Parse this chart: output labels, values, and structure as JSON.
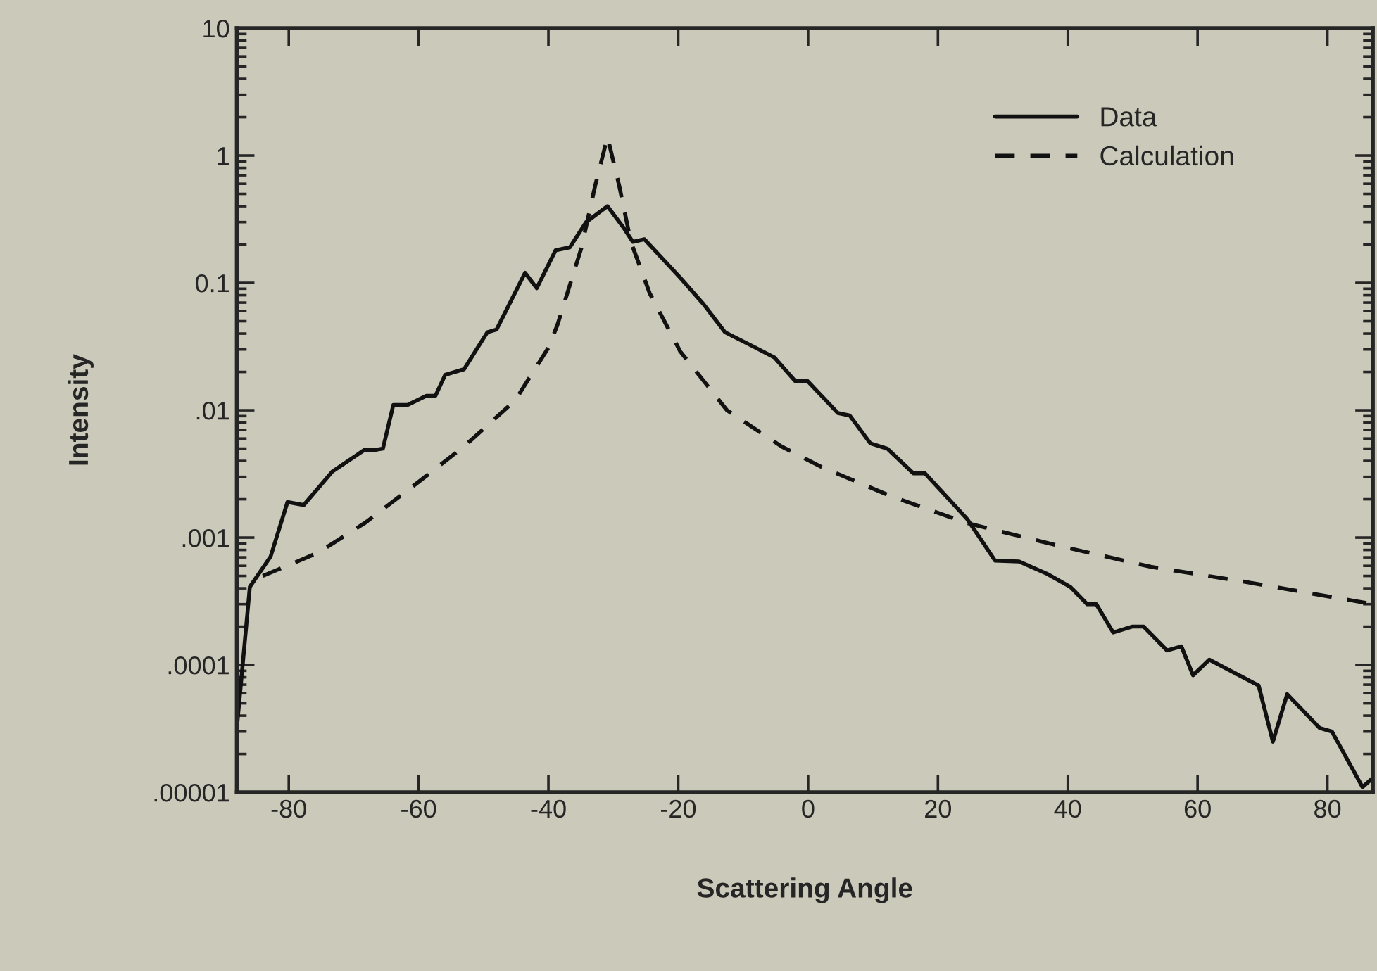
{
  "chart_data": {
    "type": "line",
    "xlabel": "Scattering Angle",
    "ylabel": "Intensity",
    "log": "y",
    "xlim": [
      -88,
      87
    ],
    "ylim": [
      1e-05,
      10
    ],
    "xticks": [
      -80,
      -60,
      -40,
      -20,
      0,
      20,
      40,
      60,
      80
    ],
    "yticks": [
      {
        "value": 1e-05,
        "label": ".00001"
      },
      {
        "value": 0.0001,
        "label": ".0001"
      },
      {
        "value": 0.001,
        "label": ".001"
      },
      {
        "value": 0.01,
        "label": ".01"
      },
      {
        "value": 0.1,
        "label": "0.1"
      },
      {
        "value": 1,
        "label": "1"
      },
      {
        "value": 10,
        "label": "10"
      }
    ],
    "grid": false,
    "legend": "top right",
    "series": [
      {
        "name": "Data",
        "color": "#111111",
        "line_style": "solid",
        "x": [
          -88,
          -86,
          -82.8,
          -80.2,
          -77.7,
          -73.3,
          -68.3,
          -66.5,
          -65.5,
          -63.9,
          -61.7,
          -58.8,
          -57.4,
          -55.9,
          -53.0,
          -50.9,
          -49.4,
          -48.0,
          -43.6,
          -41.8,
          -38.9,
          -36.7,
          -34.2,
          -30.9,
          -28.4,
          -27.0,
          -25.2,
          -19.7,
          -16.1,
          -12.8,
          -8.1,
          -5.2,
          -2.0,
          -0.1,
          4.6,
          6.4,
          9.6,
          12.2,
          16.2,
          18.0,
          24.5,
          28.8,
          32.5,
          36.8,
          40.4,
          43.0,
          44.4,
          47.0,
          49.9,
          51.7,
          55.3,
          57.5,
          59.3,
          61.8,
          69.4,
          71.6,
          73.8,
          78.8,
          80.7,
          85.4,
          87
        ],
        "values": [
          3.2e-05,
          0.00041,
          0.00071,
          0.0019,
          0.0018,
          0.0033,
          0.0049,
          0.0049,
          0.005,
          0.011,
          0.011,
          0.013,
          0.013,
          0.019,
          0.021,
          0.031,
          0.041,
          0.043,
          0.12,
          0.091,
          0.18,
          0.19,
          0.3,
          0.4,
          0.27,
          0.21,
          0.22,
          0.11,
          0.068,
          0.041,
          0.031,
          0.026,
          0.017,
          0.017,
          0.0095,
          0.0091,
          0.0055,
          0.005,
          0.0032,
          0.0032,
          0.0014,
          0.00066,
          0.00065,
          0.00052,
          0.00041,
          0.0003,
          0.0003,
          0.00018,
          0.0002,
          0.0002,
          0.00013,
          0.00014,
          8.3e-05,
          0.00011,
          6.9e-05,
          2.5e-05,
          5.9e-05,
          3.2e-05,
          3e-05,
          1.1e-05,
          1.3e-05
        ]
      },
      {
        "name": "Calculation",
        "color": "#111111",
        "line_style": "dashed",
        "x": [
          -84,
          -75.5,
          -68.3,
          -61.0,
          -53.0,
          -45.1,
          -40.0,
          -38.6,
          -34.9,
          -32.8,
          -30.9,
          -29.1,
          -27.3,
          -24.4,
          -19.7,
          -12.5,
          -4.1,
          2.0,
          12.9,
          24.5,
          38.3,
          52.8,
          67.2,
          83.9,
          87
        ],
        "values": [
          0.0005,
          0.00076,
          0.0013,
          0.0025,
          0.0052,
          0.012,
          0.031,
          0.047,
          0.19,
          0.58,
          1.4,
          0.58,
          0.21,
          0.083,
          0.029,
          0.01,
          0.0052,
          0.0036,
          0.0021,
          0.0013,
          0.00087,
          0.00059,
          0.00045,
          0.00032,
          0.0003
        ]
      }
    ]
  }
}
